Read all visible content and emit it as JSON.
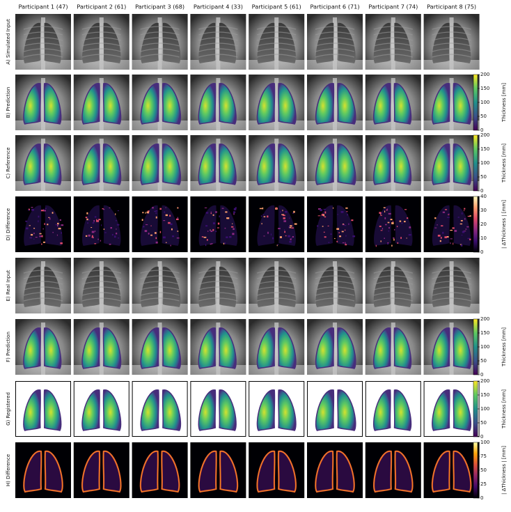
{
  "columns": [
    "Participant 1 (47)",
    "Participant 2 (61)",
    "Participant 3 (68)",
    "Participant 4 (33)",
    "Participant 5 (61)",
    "Participant 6 (71)",
    "Participant 7 (74)",
    "Participant 8 (75)"
  ],
  "rows": [
    {
      "label": "A) Simulated Input",
      "kind": "xray"
    },
    {
      "label": "B) Prediction",
      "kind": "overlay",
      "colorbar": {
        "label": "Thickness [mm]",
        "colormap": "viridis",
        "lim": [
          0,
          200
        ],
        "ticks": [
          0,
          50,
          100,
          150,
          200
        ]
      }
    },
    {
      "label": "C) Reference",
      "kind": "overlay",
      "colorbar": {
        "label": "Thickness [mm]",
        "colormap": "viridis",
        "lim": [
          0,
          200
        ],
        "ticks": [
          0,
          50,
          100,
          150,
          200
        ]
      }
    },
    {
      "label": "D) Difference",
      "kind": "diff-sparse",
      "colorbar": {
        "label": "| ΔThickness | [mm]",
        "colormap": "magma",
        "lim": [
          0,
          40
        ],
        "ticks": [
          0,
          10,
          20,
          30,
          40
        ]
      }
    },
    {
      "label": "E) Real Input",
      "kind": "xray"
    },
    {
      "label": "F) Prediction",
      "kind": "overlay",
      "colorbar": {
        "label": "Thickness [mm]",
        "colormap": "viridis",
        "lim": [
          0,
          200
        ],
        "ticks": [
          0,
          50,
          100,
          150,
          200
        ]
      }
    },
    {
      "label": "G) Registered",
      "kind": "registered",
      "colorbar": {
        "label": "Thickness [mm]",
        "colormap": "viridis",
        "lim": [
          0,
          200
        ],
        "ticks": [
          0,
          50,
          100,
          150,
          200
        ]
      }
    },
    {
      "label": "H) Difference",
      "kind": "diff-edge",
      "colorbar": {
        "label": "| ΔThickness | [mm]",
        "colormap": "inferno",
        "lim": [
          0,
          100
        ],
        "ticks": [
          0,
          25,
          50,
          75,
          100
        ]
      }
    }
  ]
}
